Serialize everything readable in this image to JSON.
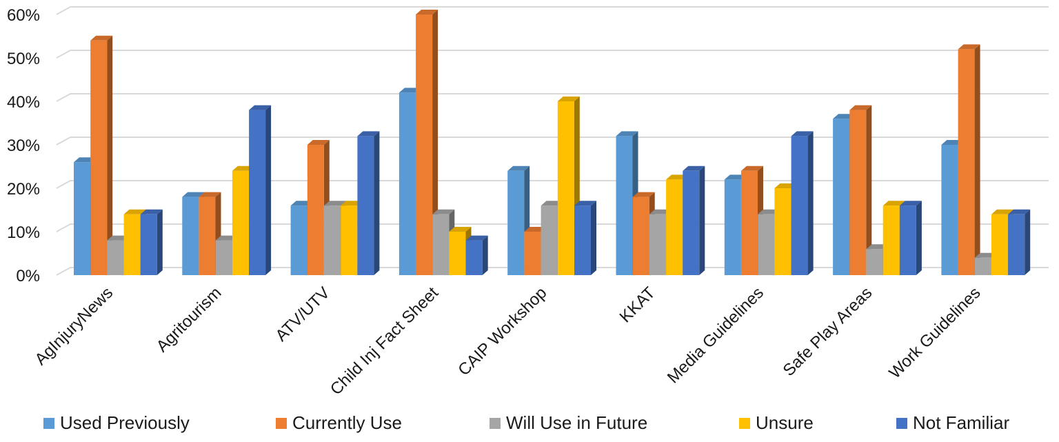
{
  "chart_data": {
    "type": "bar",
    "categories": [
      "AgInjuryNews",
      "Agritourism",
      "ATV/UTV",
      "Child Inj Fact Sheet",
      "CAIP Workshop",
      "KKAT",
      "Media Guidelines",
      "Safe Play Areas",
      "Work Guidelines"
    ],
    "series": [
      {
        "name": "Used Previously",
        "color": "#5B9BD5",
        "values": [
          26,
          18,
          16,
          42,
          24,
          32,
          22,
          36,
          30
        ]
      },
      {
        "name": "Currently Use",
        "color": "#ED7D31",
        "values": [
          54,
          18,
          30,
          60,
          10,
          18,
          24,
          38,
          52
        ]
      },
      {
        "name": "Will Use in Future",
        "color": "#A5A5A5",
        "values": [
          8,
          8,
          16,
          14,
          16,
          14,
          14,
          6,
          4
        ]
      },
      {
        "name": "Unsure",
        "color": "#FFC000",
        "values": [
          14,
          24,
          16,
          10,
          40,
          22,
          20,
          16,
          14
        ]
      },
      {
        "name": "Not Familiar",
        "color": "#4472C4",
        "values": [
          14,
          38,
          32,
          8,
          16,
          24,
          32,
          16,
          14
        ]
      }
    ],
    "yticks": [
      "0%",
      "10%",
      "20%",
      "30%",
      "40%",
      "50%",
      "60%"
    ],
    "ylim": [
      0,
      60
    ],
    "grid": true,
    "legend_position": "bottom",
    "title": "",
    "xlabel": "",
    "ylabel": ""
  }
}
